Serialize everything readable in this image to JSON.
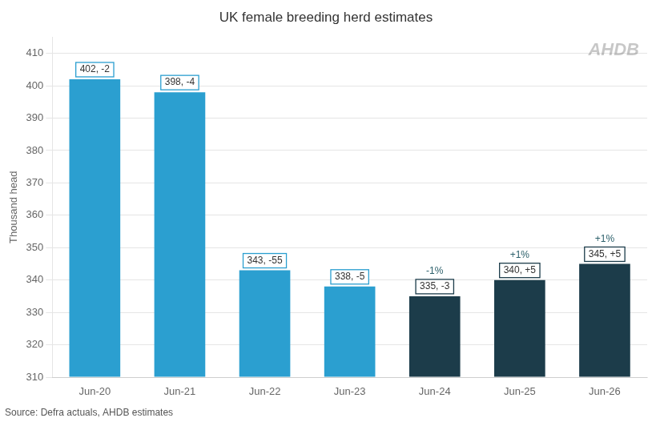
{
  "chart_data": {
    "type": "bar",
    "title": "UK female breeding herd estimates",
    "ylabel": "Thousand head",
    "source": "Source: Defra actuals, AHDB estimates",
    "annotations": [
      "AHDB"
    ],
    "categories": [
      "Jun-20",
      "Jun-21",
      "Jun-22",
      "Jun-23",
      "Jun-24",
      "Jun-25",
      "Jun-26"
    ],
    "values": [
      402,
      398,
      343,
      338,
      335,
      340,
      345
    ],
    "colors": [
      "#2B9FD0",
      "#2B9FD0",
      "#2B9FD0",
      "#2B9FD0",
      "#1C3C4A",
      "#1C3C4A",
      "#1C3C4A"
    ],
    "data_labels": true,
    "value_labels": [
      "402, -2",
      "398, -4",
      "343, -55",
      "338, -5",
      "335, -3",
      "340, +5",
      "345, +5"
    ],
    "pct_labels": [
      null,
      null,
      null,
      null,
      "-1%",
      "+1%",
      "+1%"
    ],
    "ylim": [
      310,
      415
    ],
    "yticks": [
      310,
      320,
      330,
      340,
      350,
      360,
      370,
      380,
      390,
      400,
      410
    ],
    "grid": true
  }
}
